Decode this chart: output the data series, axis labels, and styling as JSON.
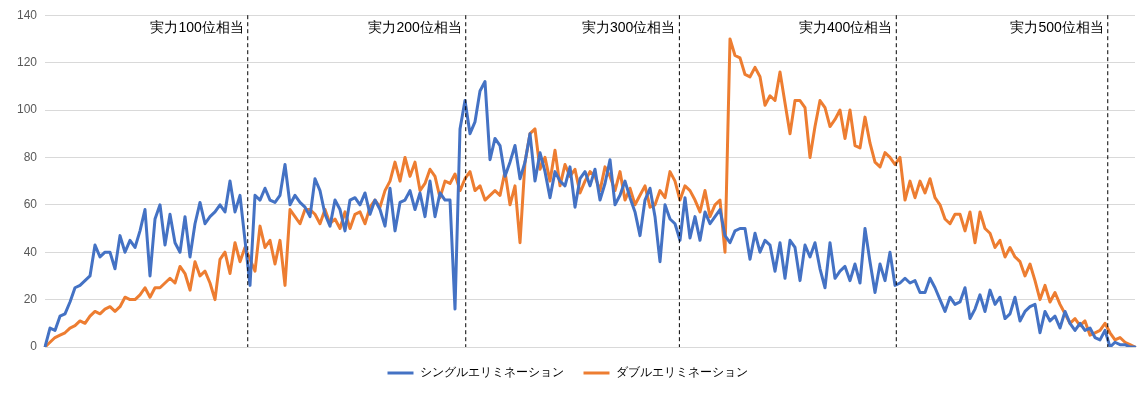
{
  "chart_data": {
    "type": "line",
    "ylim": [
      0,
      140
    ],
    "yticks": [
      0,
      20,
      40,
      60,
      80,
      100,
      120,
      140
    ],
    "tick_labels": "y",
    "grid": "y",
    "legend": "bottom",
    "marker": "none",
    "line_style": "solid",
    "categories": [
      null,
      null,
      null,
      null,
      null,
      null,
      null,
      null,
      null,
      null,
      null,
      null,
      null,
      null,
      null,
      null,
      null,
      null,
      null,
      null,
      null,
      null,
      null,
      null,
      null,
      null,
      null,
      null,
      null,
      null,
      null,
      null,
      null,
      null,
      null,
      null,
      null,
      null,
      null,
      null,
      null,
      null,
      null,
      null,
      null,
      null,
      null,
      null,
      null,
      null,
      null,
      null,
      null,
      null,
      null,
      null,
      null,
      null,
      null,
      null,
      null,
      null,
      null,
      null,
      null,
      null,
      null,
      null,
      null,
      null,
      null,
      null,
      null,
      null,
      null,
      null,
      null,
      null,
      null,
      null,
      null,
      null,
      null,
      null,
      null,
      null,
      null,
      null,
      null,
      null,
      null,
      null,
      null,
      null,
      null,
      null,
      null,
      null,
      null,
      null,
      null,
      null,
      null,
      null,
      null,
      null,
      null,
      null,
      null,
      null,
      null,
      null,
      null,
      null,
      null,
      null,
      null,
      null,
      null,
      null,
      null,
      null,
      null,
      null,
      null,
      null,
      null,
      null,
      null,
      null,
      null,
      null,
      null,
      null,
      null,
      null,
      null,
      null,
      null,
      null,
      null,
      null,
      null,
      null,
      null,
      null,
      null,
      null,
      null,
      null,
      null,
      null,
      null,
      null,
      null,
      null,
      null,
      null,
      null,
      null,
      null,
      null,
      null,
      null,
      null,
      null,
      null,
      null,
      null,
      null,
      null,
      null,
      null,
      null,
      null,
      null,
      null,
      null,
      null,
      null,
      null,
      null,
      null,
      null,
      null,
      null,
      null,
      null,
      null,
      null,
      null,
      null,
      null,
      null,
      null,
      null,
      null,
      null,
      null,
      null,
      null,
      null,
      null,
      null,
      null,
      null,
      null,
      null,
      null,
      null,
      null,
      null,
      null,
      null,
      null,
      null,
      null,
      null,
      null
    ],
    "ref_lines": [
      {
        "axis": "x",
        "label": "実力100位相当",
        "color": "#000000",
        "line_style": "dashed"
      },
      {
        "axis": "x",
        "label": "実力200位相当",
        "color": "#000000",
        "line_style": "dashed"
      },
      {
        "axis": "x",
        "label": "実力300位相当",
        "color": "#000000",
        "line_style": "dashed"
      },
      {
        "axis": "x",
        "label": "実力400位相当",
        "color": "#000000",
        "line_style": "dashed"
      },
      {
        "axis": "x",
        "label": "実力500位相当",
        "color": "#000000",
        "line_style": "dashed"
      }
    ],
    "series": [
      {
        "name": "シングルエリミネーション",
        "color": "#4472c4",
        "values": [
          0,
          8,
          7,
          13,
          14,
          19,
          25,
          26,
          28,
          30,
          43,
          38,
          40,
          40,
          33,
          47,
          40,
          45,
          42,
          49,
          58,
          30,
          54,
          60,
          43,
          56,
          44,
          40,
          55,
          38,
          52,
          61,
          52,
          55,
          57,
          60,
          57,
          70,
          57,
          64,
          45,
          26,
          64,
          62,
          67,
          62,
          61,
          64,
          77,
          60,
          64,
          61,
          59,
          55,
          71,
          66,
          56,
          51,
          62,
          58,
          49,
          62,
          63,
          60,
          65,
          56,
          62,
          58,
          51,
          67,
          49,
          61,
          62,
          66,
          58,
          65,
          55,
          70,
          55,
          65,
          62,
          62,
          16,
          92,
          104,
          90,
          95,
          108,
          112,
          79,
          88,
          85,
          72,
          78,
          85,
          71,
          78,
          90,
          70,
          82,
          74,
          63,
          74,
          70,
          68,
          76,
          59,
          71,
          74,
          68,
          75,
          62,
          69,
          79,
          60,
          64,
          70,
          63,
          57,
          47,
          62,
          67,
          55,
          36,
          60,
          54,
          52,
          45,
          63,
          46,
          55,
          45,
          57,
          52,
          55,
          58,
          47,
          44,
          49,
          50,
          50,
          37,
          48,
          40,
          45,
          43,
          32,
          44,
          29,
          45,
          42,
          28,
          43,
          38,
          44,
          33,
          25,
          44,
          29,
          32,
          34,
          28,
          35,
          27,
          50,
          36,
          23,
          35,
          28,
          40,
          26,
          27,
          29,
          27,
          28,
          23,
          23,
          29,
          25,
          20,
          15,
          21,
          18,
          19,
          25,
          12,
          16,
          22,
          15,
          24,
          18,
          21,
          12,
          14,
          21,
          11,
          15,
          17,
          18,
          6,
          15,
          11,
          13,
          8,
          15,
          10,
          7,
          10,
          7,
          8,
          4,
          3,
          7,
          0,
          2,
          1,
          1,
          0,
          0
        ]
      },
      {
        "name": "ダブルエリミネーション",
        "color": "#ed7d31",
        "values": [
          0,
          2,
          4,
          5,
          6,
          8,
          9,
          11,
          10,
          13,
          15,
          14,
          16,
          17,
          15,
          17,
          21,
          20,
          20,
          22,
          25,
          21,
          25,
          25,
          27,
          29,
          27,
          34,
          31,
          24,
          36,
          30,
          32,
          27,
          20,
          37,
          40,
          31,
          44,
          36,
          42,
          37,
          32,
          51,
          42,
          45,
          35,
          45,
          26,
          58,
          55,
          52,
          58,
          58,
          56,
          52,
          58,
          52,
          54,
          50,
          57,
          50,
          56,
          57,
          52,
          59,
          62,
          59,
          66,
          70,
          78,
          70,
          80,
          72,
          78,
          66,
          69,
          75,
          72,
          63,
          70,
          69,
          73,
          66,
          71,
          74,
          66,
          68,
          62,
          64,
          66,
          64,
          74,
          60,
          68,
          44,
          78,
          90,
          92,
          75,
          80,
          70,
          83,
          68,
          77,
          72,
          75,
          65,
          70,
          74,
          72,
          66,
          76,
          72,
          66,
          74,
          62,
          67,
          60,
          64,
          68,
          59,
          60,
          66,
          63,
          74,
          70,
          62,
          68,
          66,
          62,
          57,
          66,
          55,
          60,
          62,
          40,
          130,
          123,
          122,
          115,
          114,
          118,
          114,
          102,
          106,
          104,
          116,
          103,
          90,
          104,
          104,
          101,
          80,
          93,
          104,
          101,
          93,
          96,
          100,
          88,
          100,
          85,
          84,
          97,
          86,
          78,
          76,
          82,
          80,
          77,
          80,
          62,
          70,
          63,
          70,
          65,
          71,
          63,
          60,
          54,
          52,
          56,
          56,
          49,
          57,
          44,
          57,
          50,
          48,
          42,
          45,
          38,
          42,
          38,
          36,
          30,
          35,
          28,
          20,
          26,
          19,
          23,
          18,
          14,
          10,
          12,
          9,
          11,
          5,
          6,
          7,
          10,
          6,
          3,
          4,
          2,
          1,
          0
        ]
      }
    ]
  }
}
